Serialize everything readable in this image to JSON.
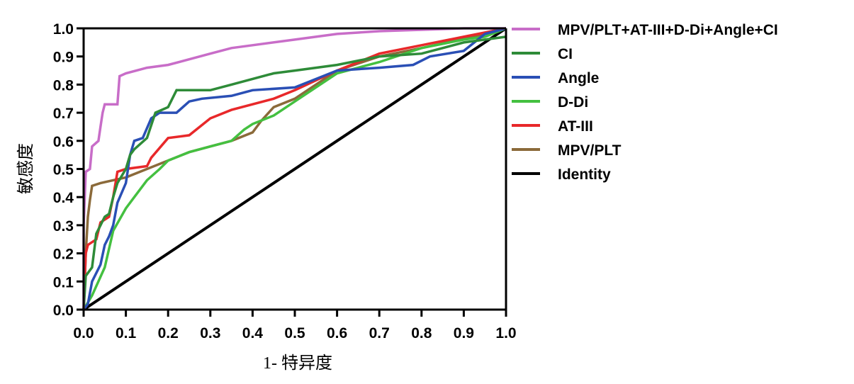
{
  "chart_data": {
    "type": "line",
    "title": "",
    "xlabel": "1- 特异度",
    "ylabel": "敏感度",
    "xlim": [
      0,
      1
    ],
    "ylim": [
      0,
      1
    ],
    "xticks": [
      "0.0",
      "0.1",
      "0.2",
      "0.3",
      "0.4",
      "0.5",
      "0.6",
      "0.7",
      "0.8",
      "0.9",
      "1.0"
    ],
    "yticks": [
      "0.0",
      "0.1",
      "0.2",
      "0.3",
      "0.4",
      "0.5",
      "0.6",
      "0.7",
      "0.8",
      "0.9",
      "1.0"
    ],
    "grid": false,
    "legend_position": "right",
    "series": [
      {
        "name": "MPV/PLT+AT-III+D-Di+Angle+CI",
        "color": "#c86dc8",
        "x": [
          0,
          0,
          0.005,
          0.015,
          0.02,
          0.035,
          0.04,
          0.045,
          0.05,
          0.08,
          0.085,
          0.1,
          0.15,
          0.2,
          0.25,
          0.3,
          0.35,
          0.4,
          0.5,
          0.6,
          0.7,
          0.9,
          1
        ],
        "y": [
          0,
          0.3,
          0.49,
          0.5,
          0.58,
          0.6,
          0.65,
          0.7,
          0.73,
          0.73,
          0.83,
          0.84,
          0.86,
          0.87,
          0.89,
          0.91,
          0.93,
          0.94,
          0.96,
          0.98,
          0.99,
          1,
          1
        ]
      },
      {
        "name": "CI",
        "color": "#2e8b38",
        "x": [
          0,
          0.005,
          0.02,
          0.03,
          0.05,
          0.06,
          0.07,
          0.08,
          0.1,
          0.11,
          0.12,
          0.15,
          0.17,
          0.2,
          0.22,
          0.3,
          0.35,
          0.45,
          0.5,
          0.6,
          0.7,
          0.8,
          0.9,
          1
        ],
        "y": [
          0,
          0.12,
          0.15,
          0.27,
          0.33,
          0.34,
          0.4,
          0.45,
          0.5,
          0.55,
          0.57,
          0.61,
          0.7,
          0.72,
          0.78,
          0.78,
          0.8,
          0.84,
          0.85,
          0.87,
          0.9,
          0.91,
          0.95,
          0.97
        ]
      },
      {
        "name": "Angle",
        "color": "#2a4fb5",
        "x": [
          0,
          0.01,
          0.02,
          0.04,
          0.05,
          0.06,
          0.07,
          0.08,
          0.1,
          0.11,
          0.12,
          0.14,
          0.16,
          0.18,
          0.22,
          0.25,
          0.28,
          0.35,
          0.4,
          0.5,
          0.55,
          0.6,
          0.7,
          0.78,
          0.82,
          0.9,
          0.95,
          1
        ],
        "y": [
          0,
          0.02,
          0.1,
          0.16,
          0.23,
          0.26,
          0.3,
          0.38,
          0.45,
          0.55,
          0.6,
          0.61,
          0.68,
          0.7,
          0.7,
          0.74,
          0.75,
          0.76,
          0.78,
          0.79,
          0.82,
          0.85,
          0.86,
          0.87,
          0.9,
          0.92,
          0.98,
          1
        ]
      },
      {
        "name": "D-Di",
        "color": "#44c040",
        "x": [
          0,
          0.02,
          0.05,
          0.07,
          0.1,
          0.12,
          0.15,
          0.18,
          0.2,
          0.25,
          0.3,
          0.35,
          0.38,
          0.4,
          0.45,
          0.5,
          0.6,
          0.7,
          0.8,
          0.9,
          0.95,
          1
        ],
        "y": [
          0,
          0.05,
          0.15,
          0.28,
          0.36,
          0.4,
          0.46,
          0.5,
          0.53,
          0.56,
          0.58,
          0.6,
          0.64,
          0.66,
          0.69,
          0.74,
          0.84,
          0.88,
          0.93,
          0.96,
          0.97,
          1
        ]
      },
      {
        "name": "AT-III",
        "color": "#e8282a",
        "x": [
          0,
          0.005,
          0.01,
          0.03,
          0.04,
          0.06,
          0.07,
          0.08,
          0.1,
          0.15,
          0.16,
          0.2,
          0.25,
          0.3,
          0.35,
          0.45,
          0.5,
          0.6,
          0.7,
          0.8,
          0.9,
          1
        ],
        "y": [
          0,
          0.2,
          0.23,
          0.25,
          0.31,
          0.33,
          0.4,
          0.49,
          0.5,
          0.51,
          0.54,
          0.61,
          0.62,
          0.68,
          0.71,
          0.75,
          0.78,
          0.85,
          0.91,
          0.94,
          0.97,
          1
        ]
      },
      {
        "name": "MPV/PLT",
        "color": "#8b6a3a",
        "x": [
          0,
          0.005,
          0.01,
          0.015,
          0.02,
          0.04,
          0.1,
          0.15,
          0.2,
          0.25,
          0.3,
          0.35,
          0.4,
          0.42,
          0.45,
          0.5,
          0.6,
          0.7,
          0.8,
          0.95,
          1
        ],
        "y": [
          0,
          0.2,
          0.33,
          0.39,
          0.44,
          0.45,
          0.47,
          0.5,
          0.53,
          0.56,
          0.58,
          0.6,
          0.63,
          0.67,
          0.72,
          0.75,
          0.85,
          0.9,
          0.93,
          0.98,
          1
        ]
      },
      {
        "name": "Identity",
        "color": "#000000",
        "x": [
          0,
          1
        ],
        "y": [
          0,
          1
        ]
      }
    ]
  }
}
